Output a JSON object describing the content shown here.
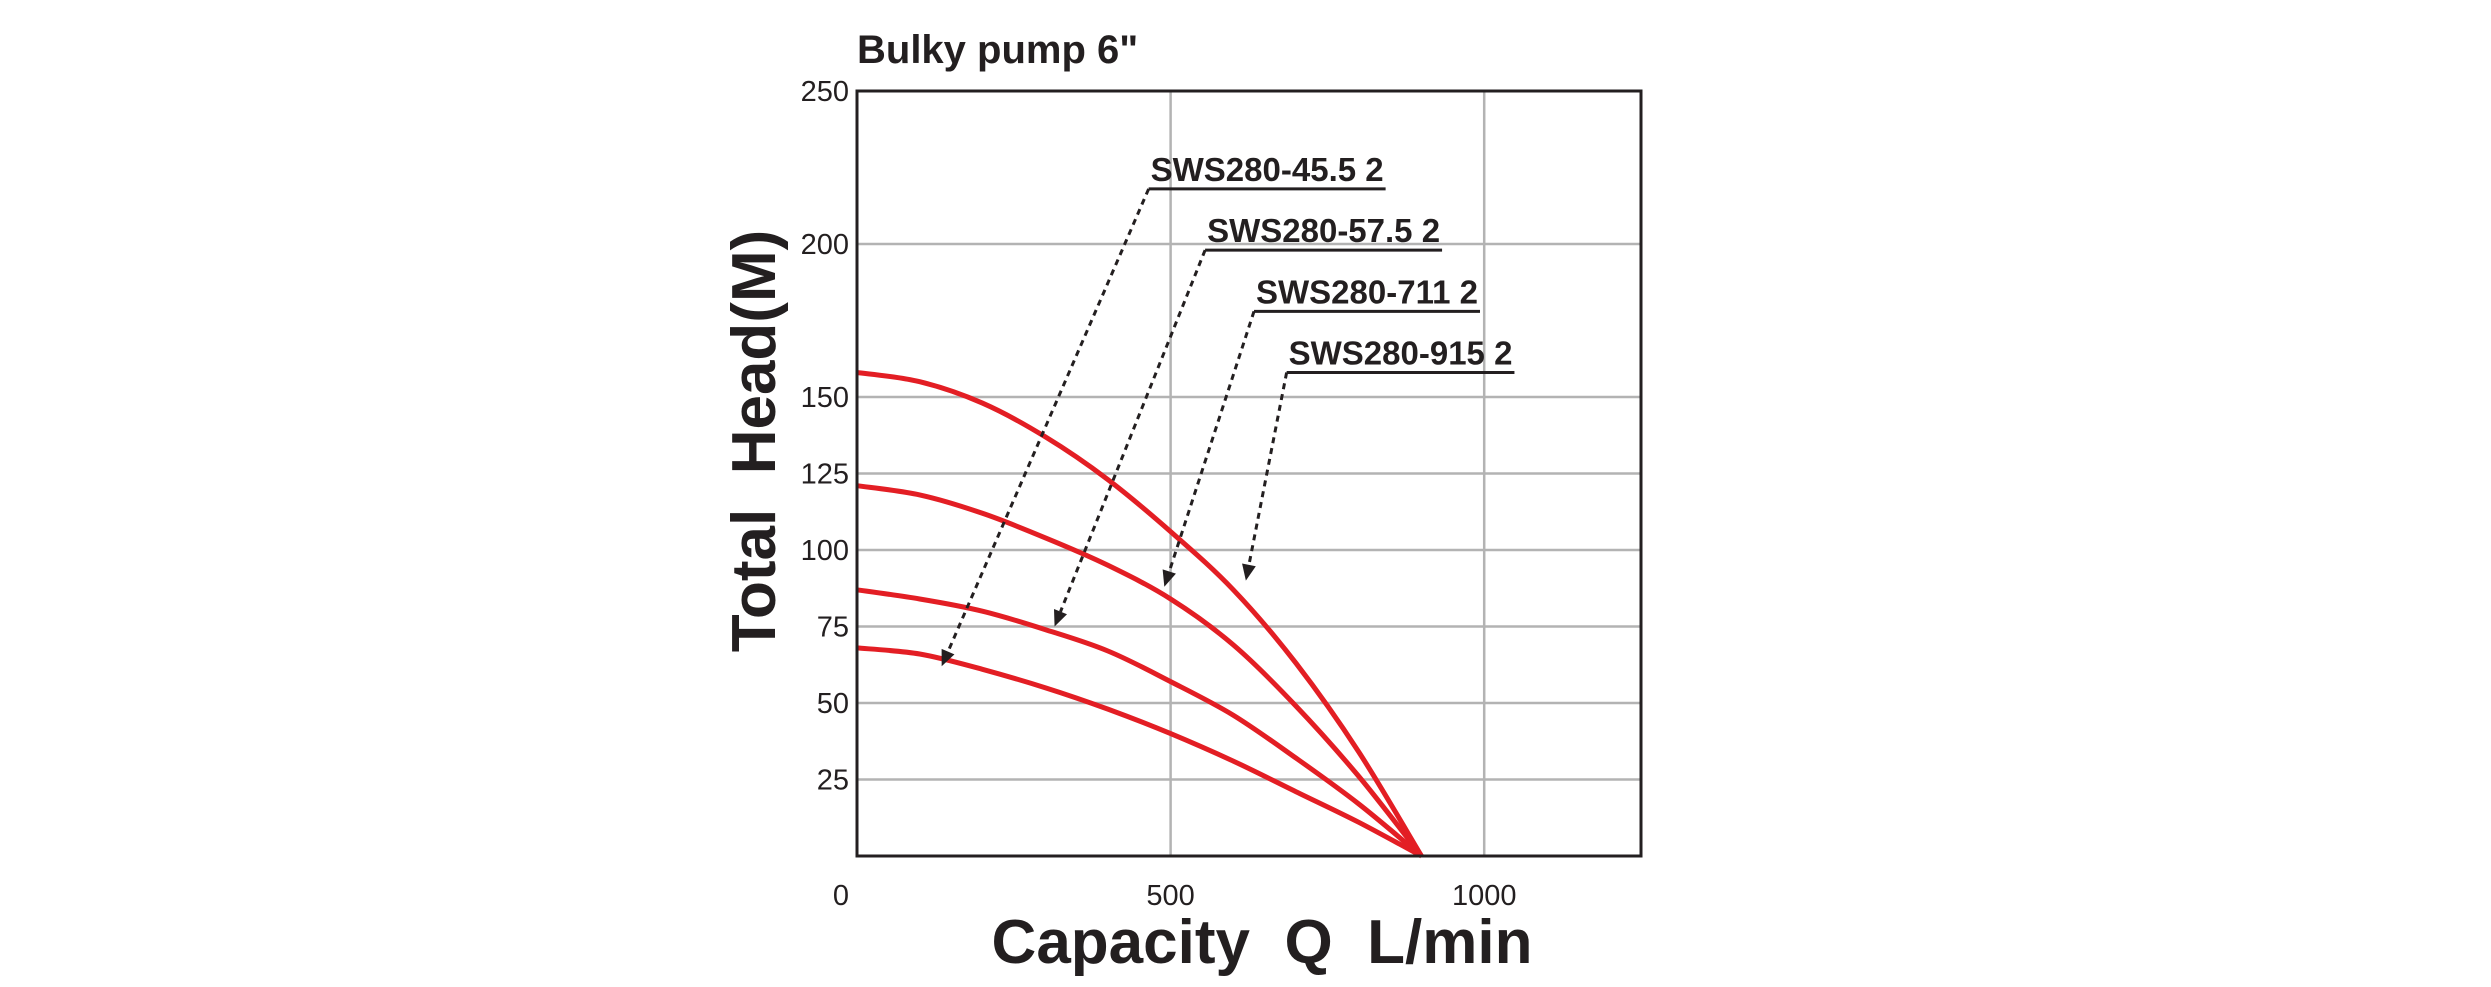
{
  "chart_data": {
    "type": "line",
    "title": "Bulky pump 6\"",
    "xlabel": "Capacity  Q  L/min",
    "ylabel": "Total  Head(M)",
    "xlim": [
      0,
      1250
    ],
    "ylim": [
      0,
      250
    ],
    "x_ticks": [
      0,
      500,
      1000
    ],
    "y_ticks": [
      25,
      50,
      75,
      100,
      125,
      150,
      200,
      250
    ],
    "grid": true,
    "colors": {
      "line": "#e31e24",
      "grid": "#b3b3b3",
      "frame": "#231f20",
      "text": "#231f20"
    },
    "series": [
      {
        "name": "SWS280-45.5 2",
        "x": [
          0,
          100,
          200,
          300,
          400,
          500,
          600,
          700,
          800,
          900
        ],
        "y": [
          68,
          66,
          61,
          55,
          48,
          40,
          31,
          21,
          11,
          0
        ],
        "label_anchor": [
          465,
          218
        ],
        "arrow_target": [
          135,
          62
        ]
      },
      {
        "name": "SWS280-57.5 2",
        "x": [
          0,
          100,
          200,
          300,
          400,
          500,
          600,
          700,
          800,
          900
        ],
        "y": [
          87,
          84,
          80,
          74,
          67,
          57,
          46,
          32,
          17,
          0
        ],
        "label_anchor": [
          555,
          198
        ],
        "arrow_target": [
          315,
          75
        ]
      },
      {
        "name": "SWS280-711 2",
        "x": [
          0,
          100,
          200,
          300,
          400,
          500,
          600,
          700,
          800,
          900
        ],
        "y": [
          121,
          118,
          112,
          104,
          95,
          84,
          69,
          49,
          26,
          0
        ],
        "label_anchor": [
          633,
          178
        ],
        "arrow_target": [
          490,
          88
        ]
      },
      {
        "name": "SWS280-915 2",
        "x": [
          0,
          100,
          200,
          300,
          400,
          500,
          600,
          700,
          800,
          900
        ],
        "y": [
          158,
          155,
          148,
          137,
          123,
          106,
          87,
          63,
          34,
          0
        ],
        "label_anchor": [
          685,
          158
        ],
        "arrow_target": [
          620,
          90
        ]
      }
    ]
  }
}
